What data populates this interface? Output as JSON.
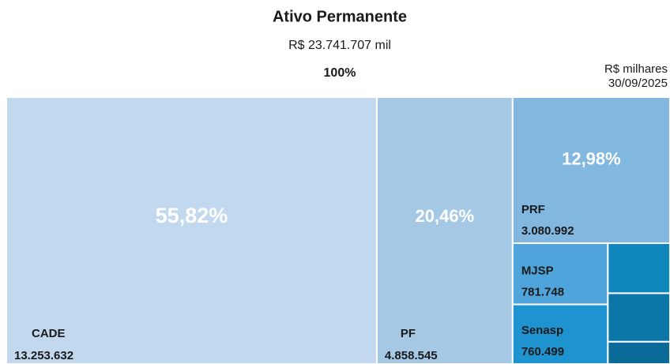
{
  "chart_data": {
    "type": "treemap",
    "title": "Ativo Permanente",
    "subtitle": "R$ 23.741.707 mil",
    "total_share_label": "100%",
    "unit_note": "R$ milhares",
    "date": "30/09/2025",
    "categories": [
      "CADE",
      "PF",
      "PRF",
      "MJSP",
      "Senasp",
      null,
      null,
      null
    ],
    "values": [
      13253632,
      4858545,
      3080992,
      781748,
      760499,
      417000,
      404000,
      185291
    ],
    "value_labels": [
      "13.253.632",
      "4.858.545",
      "3.080.992",
      "781.748",
      "760.499",
      null,
      null,
      null
    ],
    "share_labels": [
      "55,82%",
      "20,46%",
      "12,98%",
      null,
      null,
      null,
      null,
      null
    ],
    "colors": [
      "#c2d8ee",
      "#a5c8e5",
      "#82b7df",
      "#4fa5db",
      "#1f92d0",
      "#0f86bd",
      "#0b77a9",
      "#0a6a98"
    ]
  }
}
